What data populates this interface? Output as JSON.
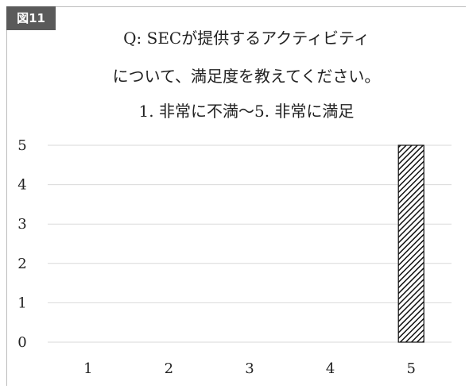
{
  "figure_label": "図11",
  "chart_data": {
    "type": "bar",
    "title_lines": [
      "Q: SECが提供するアクティビティ",
      "について、満足度を教えてください。",
      "1. 非常に不満〜5. 非常に満足"
    ],
    "categories": [
      "1",
      "2",
      "3",
      "4",
      "5"
    ],
    "values": [
      0,
      0,
      0,
      0,
      5
    ],
    "xlabel": "",
    "ylabel": "",
    "ylim": [
      0,
      5
    ],
    "yticks": [
      0,
      1,
      2,
      3,
      4,
      5
    ],
    "grid": true,
    "legend": "none",
    "bar_fill": "diagonal-hatch-black",
    "grid_color": "#d9d9d9"
  }
}
